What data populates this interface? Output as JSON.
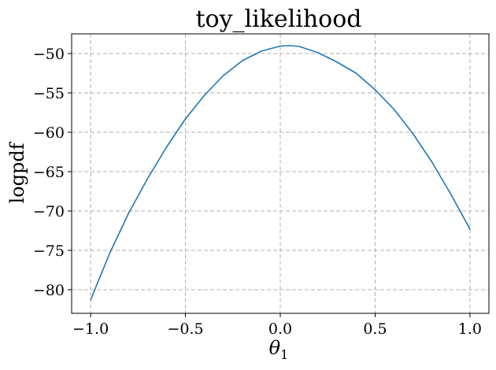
{
  "chart_data": {
    "type": "line",
    "title": "toy_likelihood",
    "xlabel": "θ",
    "xlabel_subscript": "1",
    "ylabel": "logpdf",
    "xlim": [
      -1.1,
      1.1
    ],
    "ylim": [
      -83,
      -47.5
    ],
    "xticks": [
      -1.0,
      -0.5,
      0.0,
      0.5,
      1.0
    ],
    "xtick_labels": [
      "−1.0",
      "−0.5",
      "0.0",
      "0.5",
      "1.0"
    ],
    "yticks": [
      -80,
      -75,
      -70,
      -65,
      -60,
      -55,
      -50
    ],
    "ytick_labels": [
      "−80",
      "−75",
      "−70",
      "−65",
      "−60",
      "−55",
      "−50"
    ],
    "grid": true,
    "series": [
      {
        "color": "#1f77b4",
        "x": [
          -1.0,
          -0.9,
          -0.8,
          -0.7,
          -0.6,
          -0.5,
          -0.4,
          -0.3,
          -0.2,
          -0.1,
          0.0,
          0.05,
          0.1,
          0.2,
          0.3,
          0.4,
          0.5,
          0.6,
          0.7,
          0.8,
          0.9,
          1.0
        ],
        "y": [
          -81.3,
          -75.4,
          -70.3,
          -65.9,
          -61.9,
          -58.3,
          -55.3,
          -52.8,
          -50.9,
          -49.7,
          -49.05,
          -49.0,
          -49.1,
          -49.9,
          -51.1,
          -52.5,
          -54.6,
          -57.1,
          -60.2,
          -63.8,
          -67.9,
          -72.3
        ]
      }
    ]
  }
}
